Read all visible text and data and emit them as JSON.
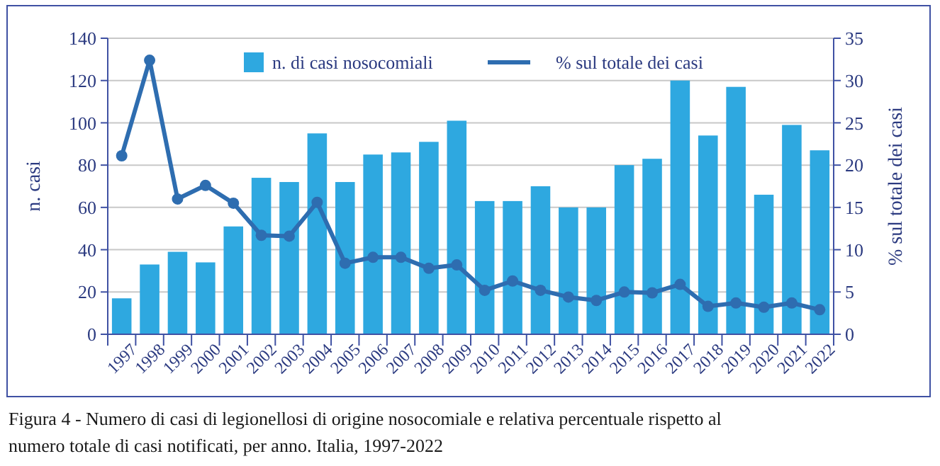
{
  "chart_data": {
    "type": "bar",
    "categories": [
      "1997",
      "1998",
      "1999",
      "2000",
      "2001",
      "2002",
      "2003",
      "2004",
      "2005",
      "2006",
      "2007",
      "2008",
      "2009",
      "2010",
      "2011",
      "2012",
      "2013",
      "2014",
      "2015",
      "2016",
      "2017",
      "2018",
      "2019",
      "2020",
      "2021",
      "2022"
    ],
    "series": [
      {
        "name": "n. di casi nosocomiali",
        "color": "#2ea8e0",
        "values": [
          17,
          33,
          39,
          34,
          51,
          74,
          72,
          95,
          72,
          85,
          86,
          91,
          101,
          63,
          63,
          70,
          60,
          60,
          80,
          83,
          120,
          94,
          117,
          66,
          99,
          87
        ]
      },
      {
        "name": "% sul totale dei casi",
        "type": "line",
        "axis": "y2",
        "color": "#2e6db0",
        "marker": "circle",
        "values": [
          21.1,
          32.4,
          16.0,
          17.6,
          15.5,
          11.7,
          11.6,
          15.6,
          8.4,
          9.1,
          9.1,
          7.8,
          8.2,
          5.2,
          6.3,
          5.2,
          4.4,
          4.0,
          5.0,
          4.9,
          5.9,
          3.3,
          3.7,
          3.2,
          3.7,
          2.9
        ]
      }
    ],
    "ylabel": "n. casi",
    "y2label": "% sul totale dei casi",
    "ylim": [
      0,
      140
    ],
    "yticks": [
      0,
      20,
      40,
      60,
      80,
      100,
      120,
      140
    ],
    "y2lim": [
      0,
      35
    ],
    "y2ticks": [
      0,
      5,
      10,
      15,
      20,
      25,
      30,
      35
    ],
    "grid": "y",
    "legend": "top",
    "annotations": [
      "Figura 4 - Numero di casi di legionellosi di origine nosocomiale e relativa percentuale rispetto al numero totale di casi notificati, per anno. Italia, 1997-2022"
    ]
  }
}
